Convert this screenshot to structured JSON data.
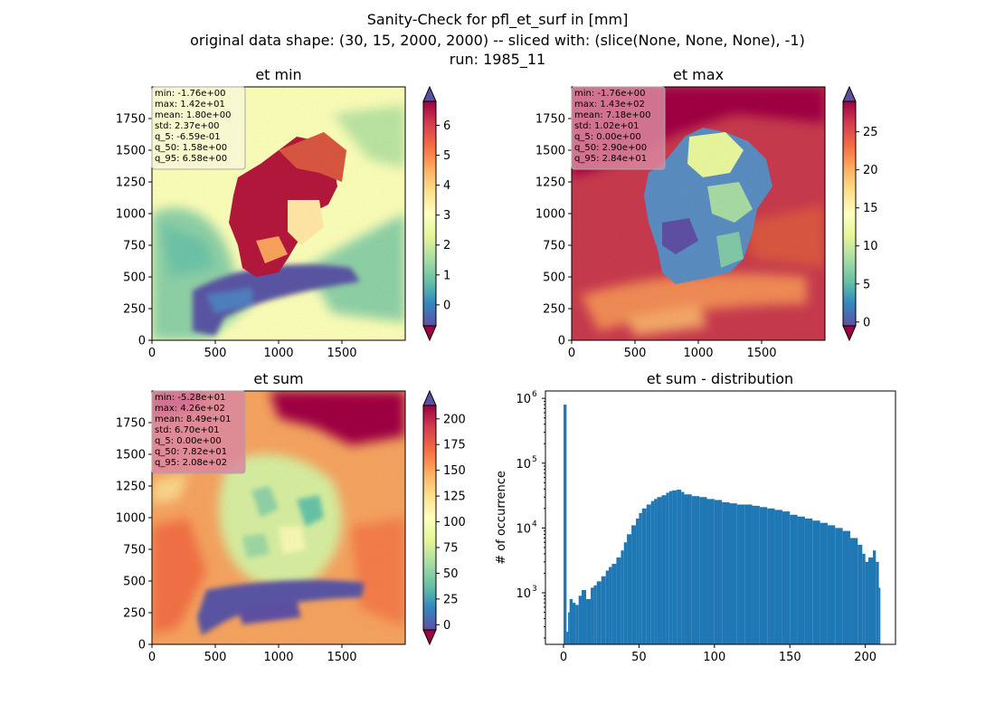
{
  "suptitle": {
    "line1": "Sanity-Check for pfl_et_surf in [mm]",
    "line2": "original data shape: (30, 15, 2000, 2000) -- sliced with: (slice(None, None, None), -1)",
    "line3": "run: 1985_11"
  },
  "colors": {
    "spectral": [
      "#9e0142",
      "#d53e4f",
      "#f46d43",
      "#fdae61",
      "#fee08b",
      "#ffffbf",
      "#e6f598",
      "#abdda4",
      "#66c2a5",
      "#3288bd",
      "#5e4fa2"
    ],
    "hist_bar": "#1f77b4",
    "stats_box_light": "#f7f7d4",
    "stats_box_pink": "#d9879f"
  },
  "chart_data": [
    {
      "type": "heatmap",
      "title": "et min",
      "xlim": [
        0,
        2000
      ],
      "ylim": [
        0,
        2000
      ],
      "x_ticks": [
        0,
        500,
        1000,
        1500
      ],
      "y_ticks": [
        0,
        250,
        500,
        750,
        1000,
        1250,
        1500,
        1750
      ],
      "colormap": "Spectral",
      "colorbar": {
        "min": -0.7,
        "max": 6.8,
        "ticks": [
          0,
          1,
          2,
          3,
          4,
          5,
          6
        ],
        "extend": "both"
      },
      "stats": [
        "min: -1.76e+00",
        "max: 1.42e+01",
        "mean: 1.80e+00",
        "std: 2.37e+00",
        "q_5: -6.59e-01",
        "q_50: 1.58e+00",
        "q_95: 6.58e+00"
      ]
    },
    {
      "type": "heatmap",
      "title": "et max",
      "xlim": [
        0,
        2000
      ],
      "ylim": [
        0,
        2000
      ],
      "x_ticks": [
        0,
        500,
        1000,
        1500
      ],
      "y_ticks": [
        0,
        250,
        500,
        750,
        1000,
        1250,
        1500,
        1750
      ],
      "colormap": "Spectral",
      "colorbar": {
        "min": -0.5,
        "max": 29,
        "ticks": [
          0,
          5,
          10,
          15,
          20,
          25
        ],
        "extend": "both"
      },
      "stats": [
        "min: -1.76e+00",
        "max: 1.43e+02",
        "mean: 7.18e+00",
        "std: 1.02e+01",
        "q_5: 0.00e+00",
        "q_50: 2.90e+00",
        "q_95: 2.84e+01"
      ]
    },
    {
      "type": "heatmap",
      "title": "et sum",
      "xlim": [
        0,
        2000
      ],
      "ylim": [
        0,
        2000
      ],
      "x_ticks": [
        0,
        500,
        1000,
        1500
      ],
      "y_ticks": [
        0,
        250,
        500,
        750,
        1000,
        1250,
        1500,
        1750
      ],
      "colormap": "Spectral",
      "colorbar": {
        "min": -5,
        "max": 213,
        "ticks": [
          0,
          25,
          50,
          75,
          100,
          125,
          150,
          175,
          200
        ],
        "extend": "both"
      },
      "stats": [
        "min: -5.28e+01",
        "max: 4.26e+02",
        "mean: 8.49e+01",
        "std: 6.70e+01",
        "q_5: 0.00e+00",
        "q_50: 7.82e+01",
        "q_95: 2.08e+02"
      ]
    },
    {
      "type": "bar",
      "title": "et sum - distribution",
      "ylabel": "# of occurrence",
      "y_scale": "log",
      "xlim": [
        -12,
        220
      ],
      "ylim": [
        160,
        1300000
      ],
      "x_ticks": [
        0,
        50,
        100,
        150,
        200
      ],
      "y_ticks": [
        {
          "value": 1000,
          "base": "10",
          "exp": "3"
        },
        {
          "value": 10000,
          "base": "10",
          "exp": "4"
        },
        {
          "value": 100000,
          "base": "10",
          "exp": "5"
        },
        {
          "value": 1000000,
          "base": "10",
          "exp": "6"
        }
      ],
      "bin_width": 1,
      "bins": [
        [
          0,
          800000
        ],
        [
          2,
          250
        ],
        [
          3,
          500
        ],
        [
          4,
          800
        ],
        [
          6,
          700
        ],
        [
          8,
          650
        ],
        [
          10,
          900
        ],
        [
          12,
          1100
        ],
        [
          15,
          800
        ],
        [
          18,
          1200
        ],
        [
          20,
          1300
        ],
        [
          22,
          1500
        ],
        [
          25,
          1800
        ],
        [
          28,
          2200
        ],
        [
          30,
          2500
        ],
        [
          32,
          2800
        ],
        [
          35,
          3500
        ],
        [
          38,
          4500
        ],
        [
          40,
          6000
        ],
        [
          42,
          8000
        ],
        [
          45,
          11000
        ],
        [
          48,
          14000
        ],
        [
          50,
          17000
        ],
        [
          52,
          20000
        ],
        [
          55,
          23000
        ],
        [
          58,
          26000
        ],
        [
          60,
          28000
        ],
        [
          62,
          30000
        ],
        [
          65,
          32000
        ],
        [
          68,
          35000
        ],
        [
          70,
          37000
        ],
        [
          72,
          38000
        ],
        [
          75,
          39000
        ],
        [
          78,
          36000
        ],
        [
          80,
          33000
        ],
        [
          85,
          31000
        ],
        [
          90,
          30000
        ],
        [
          95,
          28000
        ],
        [
          100,
          27000
        ],
        [
          105,
          25000
        ],
        [
          110,
          24000
        ],
        [
          115,
          23000
        ],
        [
          120,
          23000
        ],
        [
          125,
          22000
        ],
        [
          130,
          21000
        ],
        [
          135,
          20000
        ],
        [
          140,
          19000
        ],
        [
          145,
          18000
        ],
        [
          150,
          16000
        ],
        [
          155,
          15000
        ],
        [
          160,
          14000
        ],
        [
          165,
          13000
        ],
        [
          170,
          12000
        ],
        [
          175,
          11000
        ],
        [
          180,
          10000
        ],
        [
          185,
          9000
        ],
        [
          190,
          7000
        ],
        [
          195,
          5500
        ],
        [
          198,
          4000
        ],
        [
          200,
          3000
        ],
        [
          202,
          3500
        ],
        [
          205,
          4500
        ],
        [
          207,
          3000
        ],
        [
          209,
          1200
        ]
      ]
    }
  ]
}
